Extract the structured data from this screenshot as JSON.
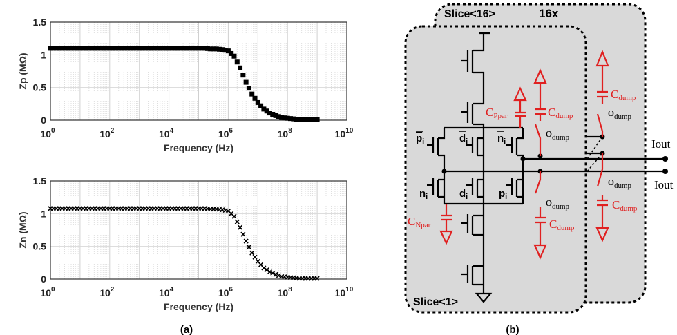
{
  "figure": {
    "caption_a": "(a)",
    "caption_b": "(b)"
  },
  "chart_data": [
    {
      "type": "scatter",
      "marker": "square",
      "xlabel": "Frequency (Hz)",
      "ylabel": "Zp (MΩ)",
      "xscale": "log",
      "xlim": [
        1,
        10000000000
      ],
      "ylim": [
        0,
        1.5
      ],
      "xticks": [
        "10^0",
        "10^2",
        "10^4",
        "10^6",
        "10^8",
        "10^10"
      ],
      "yticks": [
        "0",
        "0.5",
        "1",
        "1.5"
      ],
      "grid": true,
      "x_exponents": [
        0,
        0.2,
        0.4,
        0.6,
        0.8,
        1,
        1.2,
        1.4,
        1.6,
        1.8,
        2,
        2.2,
        2.4,
        2.6,
        2.8,
        3,
        3.2,
        3.4,
        3.6,
        3.8,
        4,
        4.2,
        4.4,
        4.6,
        4.8,
        5,
        5.2,
        5.4,
        5.6,
        5.8,
        6,
        6.2,
        6.4,
        6.6,
        6.8,
        7,
        7.2,
        7.4,
        7.6,
        7.8,
        8,
        8.2,
        8.4,
        8.6,
        8.8,
        9
      ],
      "values": [
        1.1,
        1.1,
        1.1,
        1.1,
        1.1,
        1.1,
        1.1,
        1.1,
        1.1,
        1.1,
        1.1,
        1.1,
        1.1,
        1.1,
        1.1,
        1.1,
        1.1,
        1.1,
        1.1,
        1.1,
        1.1,
        1.1,
        1.1,
        1.1,
        1.1,
        1.1,
        1.1,
        1.09,
        1.09,
        1.08,
        1.06,
        0.98,
        0.8,
        0.58,
        0.4,
        0.27,
        0.17,
        0.11,
        0.07,
        0.04,
        0.03,
        0.02,
        0.01,
        0.01,
        0.01,
        0.01
      ]
    },
    {
      "type": "scatter",
      "marker": "x",
      "xlabel": "Frequency (Hz)",
      "ylabel": "Zn (MΩ)",
      "xscale": "log",
      "xlim": [
        1,
        10000000000
      ],
      "ylim": [
        0,
        1.5
      ],
      "xticks": [
        "10^0",
        "10^2",
        "10^4",
        "10^6",
        "10^8",
        "10^10"
      ],
      "yticks": [
        "0",
        "0.5",
        "1",
        "1.5"
      ],
      "grid": true,
      "x_exponents": [
        0,
        0.2,
        0.4,
        0.6,
        0.8,
        1,
        1.2,
        1.4,
        1.6,
        1.8,
        2,
        2.2,
        2.4,
        2.6,
        2.8,
        3,
        3.2,
        3.4,
        3.6,
        3.8,
        4,
        4.2,
        4.4,
        4.6,
        4.8,
        5,
        5.2,
        5.4,
        5.6,
        5.8,
        6,
        6.2,
        6.4,
        6.6,
        6.8,
        7,
        7.2,
        7.4,
        7.6,
        7.8,
        8,
        8.2,
        8.4,
        8.6,
        8.8,
        9
      ],
      "values": [
        1.08,
        1.08,
        1.08,
        1.08,
        1.08,
        1.08,
        1.08,
        1.08,
        1.08,
        1.08,
        1.08,
        1.08,
        1.08,
        1.08,
        1.08,
        1.08,
        1.08,
        1.08,
        1.08,
        1.08,
        1.08,
        1.08,
        1.08,
        1.08,
        1.08,
        1.08,
        1.08,
        1.07,
        1.07,
        1.06,
        1.04,
        0.96,
        0.79,
        0.58,
        0.4,
        0.27,
        0.17,
        0.11,
        0.07,
        0.04,
        0.03,
        0.02,
        0.01,
        0.01,
        0.01,
        0.01
      ]
    }
  ],
  "diagram": {
    "slice_back": "Slice<16>",
    "slice_front": "Slice<1>",
    "multiplier": "16x",
    "colors": {
      "parasitic": "#e02020",
      "box_fill": "#d9d9d9",
      "wire": "#000000"
    },
    "transistor_labels": {
      "pi_bar": {
        "base": "p",
        "sub": "i"
      },
      "di_bar": {
        "base": "d",
        "sub": "i"
      },
      "ni_bar": {
        "base": "n",
        "sub": "i"
      },
      "ni": {
        "base": "n",
        "sub": "i"
      },
      "di": {
        "base": "d",
        "sub": "i"
      },
      "pi": {
        "base": "p",
        "sub": "i"
      }
    },
    "caps": {
      "cppar": {
        "base": "C",
        "sub": "Ppar"
      },
      "cnpar": {
        "base": "C",
        "sub": "Npar"
      },
      "cdump": {
        "base": "C",
        "sub": "dump"
      }
    },
    "switch": {
      "base": "ϕ",
      "sub": "dump"
    },
    "outputs": [
      "Iout",
      "Iout"
    ]
  }
}
